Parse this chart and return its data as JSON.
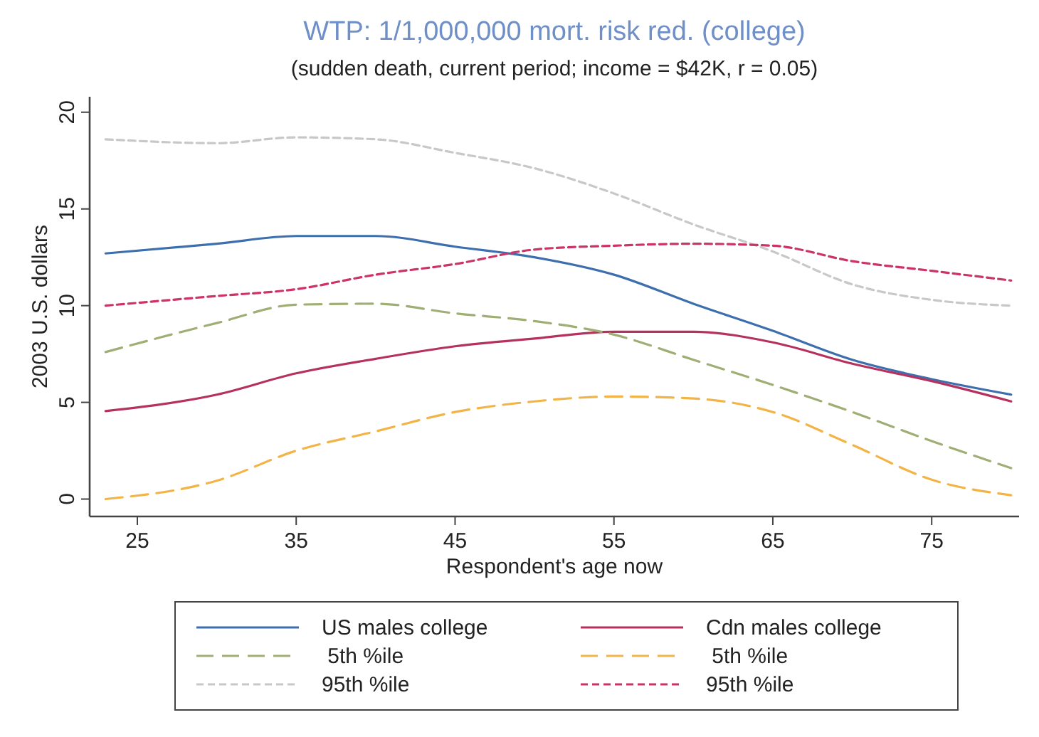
{
  "chart_data": {
    "type": "line",
    "title": "WTP: 1/1,000,000 mort. risk red. (college)",
    "subtitle": "(sudden death, current period; income = $42K, r = 0.05)",
    "xlabel": "Respondent's age now",
    "ylabel": "2003 U.S. dollars",
    "x": [
      23,
      30,
      35,
      40,
      45,
      50,
      55,
      60,
      65,
      70,
      75,
      80
    ],
    "xlim": [
      22,
      80.5
    ],
    "xticks": [
      25,
      35,
      45,
      55,
      65,
      75
    ],
    "ylim": [
      -0.9,
      20.8
    ],
    "yticks": [
      0,
      5,
      10,
      15,
      20
    ],
    "grid": false,
    "legend": "bottom",
    "marker": "none",
    "series": [
      {
        "name": "US males college",
        "color": "#3d6fae",
        "line_style": "solid",
        "values": [
          12.7,
          13.2,
          13.6,
          13.6,
          13.05,
          12.5,
          11.6,
          10.1,
          8.7,
          7.2,
          6.2,
          5.4
        ]
      },
      {
        "name": "Cdn males college",
        "color": "#b5325e",
        "line_style": "solid",
        "values": [
          4.55,
          5.4,
          6.5,
          7.25,
          7.9,
          8.3,
          8.65,
          8.65,
          8.1,
          7.0,
          6.1,
          5.05
        ]
      },
      {
        "name": " 5th %ile",
        "color": "#9fae74",
        "line_style": "dashed",
        "values": [
          7.6,
          9.1,
          10.05,
          10.1,
          9.6,
          9.2,
          8.5,
          7.2,
          5.9,
          4.5,
          3.0,
          1.6
        ]
      },
      {
        "name": " 5th %ile",
        "color": "#f2b446",
        "line_style": "dashed",
        "values": [
          0,
          0.95,
          2.5,
          3.5,
          4.5,
          5.05,
          5.3,
          5.2,
          4.5,
          2.8,
          1.0,
          0.2
        ]
      },
      {
        "name": "95th %ile",
        "color": "#c8c8c8",
        "line_style": "dotted",
        "values": [
          18.6,
          18.4,
          18.7,
          18.6,
          17.9,
          17.1,
          15.8,
          14.2,
          12.8,
          11.1,
          10.3,
          10.0
        ]
      },
      {
        "name": "95th %ile",
        "color": "#cc3366",
        "line_style": "dotted",
        "values": [
          10.0,
          10.5,
          10.85,
          11.6,
          12.15,
          12.9,
          13.1,
          13.2,
          13.1,
          12.3,
          11.8,
          11.3
        ]
      }
    ]
  }
}
